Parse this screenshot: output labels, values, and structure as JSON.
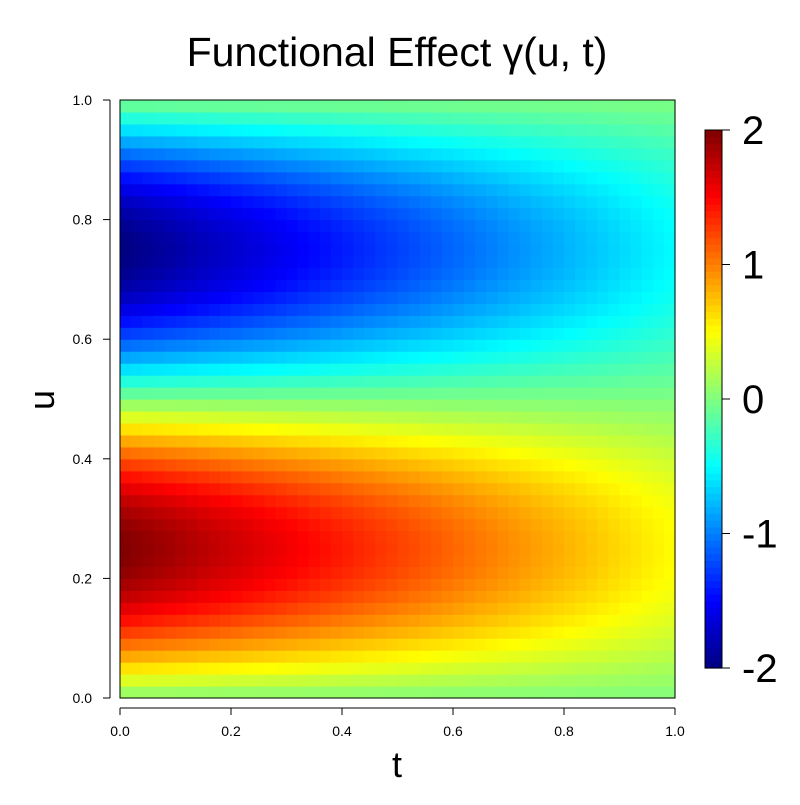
{
  "chart_data": {
    "type": "heatmap",
    "title": "Functional Effect γ(u, t)",
    "xlabel": "t",
    "ylabel": "u",
    "xlim": [
      0,
      1
    ],
    "ylim": [
      0,
      1
    ],
    "x_ticks": [
      "0.0",
      "0.2",
      "0.4",
      "0.6",
      "0.8",
      "1.0"
    ],
    "y_ticks": [
      "0.0",
      "0.2",
      "0.4",
      "0.6",
      "0.8",
      "1.0"
    ],
    "grid_size": [
      50,
      50
    ],
    "function": "gamma(u,t) = 2 * sin(2*pi*u) * (1 - 0.75*t)",
    "sample_values": {
      "u_points": [
        0.0,
        0.25,
        0.5,
        0.75,
        1.0
      ],
      "gamma_at_t0": [
        0,
        2,
        0,
        -2,
        0
      ],
      "gamma_at_t1": [
        0,
        0.5,
        0,
        -0.5,
        0
      ]
    },
    "colorbar": {
      "range": [
        -2,
        2
      ],
      "ticks": [
        "-2",
        "-1",
        "0",
        "1",
        "2"
      ],
      "colormap": "jet",
      "stops": [
        "#00007F",
        "#0000FF",
        "#007FFF",
        "#00FFFF",
        "#7FFF7F",
        "#FFFF00",
        "#FF7F00",
        "#FF0000",
        "#7F0000"
      ]
    },
    "grid": false,
    "legend": "colorbar-right"
  }
}
